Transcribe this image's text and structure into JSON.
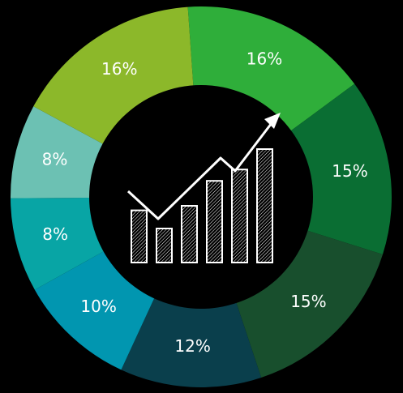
{
  "chart_data": {
    "type": "pie",
    "donut": true,
    "categories": [
      "16%",
      "15%",
      "15%",
      "12%",
      "10%",
      "8%",
      "8%",
      "16%"
    ],
    "values": [
      16,
      15,
      15,
      12,
      10,
      8,
      8,
      16
    ],
    "labels": [
      "16%",
      "15%",
      "15%",
      "12%",
      "10%",
      "8%",
      "8%",
      "16%"
    ],
    "colors": [
      "#2fae3a",
      "#0a6e33",
      "#184f2d",
      "#0a3f4c",
      "#0196b0",
      "#08a5a5",
      "#6cc1b3",
      "#8cb82a"
    ]
  },
  "center_icon": "growth-chart-icon",
  "center_icon_bar_levels": [
    0.46,
    0.3,
    0.5,
    0.72,
    0.82,
    1.0
  ]
}
